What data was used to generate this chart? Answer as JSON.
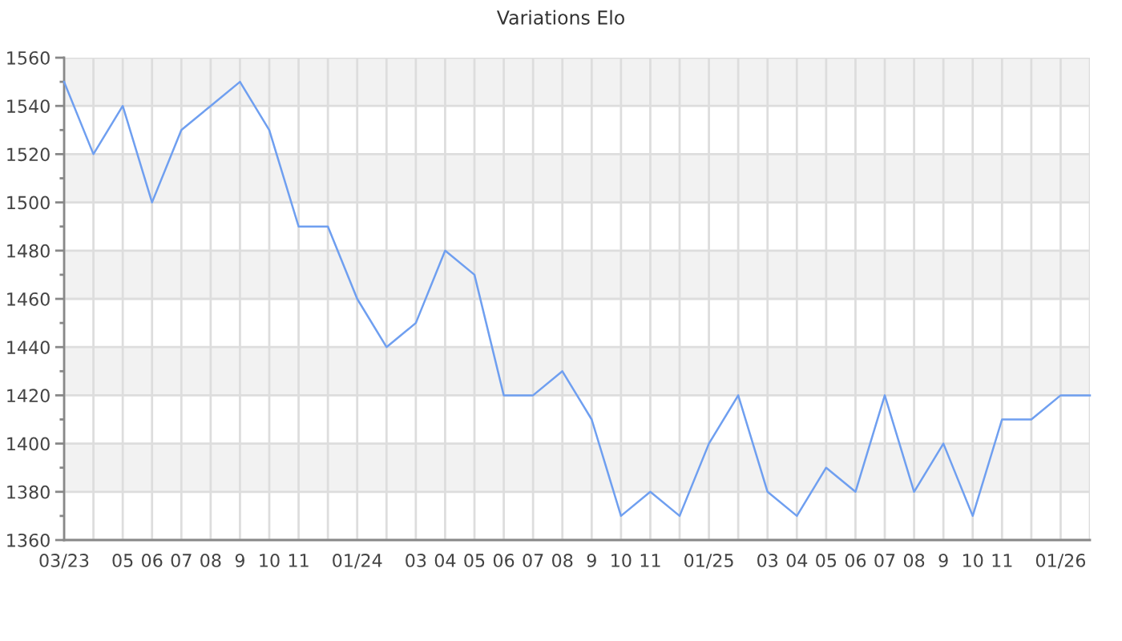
{
  "chart_data": {
    "type": "line",
    "title": "Variations Elo",
    "categories": [
      "03/23",
      null,
      "05",
      "06",
      "07",
      "08",
      "9",
      "10",
      "11",
      null,
      "01/24",
      null,
      "03",
      "04",
      "05",
      "06",
      "07",
      "08",
      "9",
      "10",
      "11",
      null,
      "01/25",
      null,
      "03",
      "04",
      "05",
      "06",
      "07",
      "08",
      "9",
      "10",
      "11",
      null,
      "01/26",
      null
    ],
    "series": [
      {
        "color": "#6f9ff0",
        "values": [
          1550,
          1520,
          1540,
          1500,
          1530,
          1540,
          1550,
          1530,
          1490,
          1490,
          1460,
          1440,
          1450,
          1480,
          1470,
          1420,
          1420,
          1430,
          1410,
          1370,
          1380,
          1370,
          1400,
          1420,
          1380,
          1370,
          1390,
          1380,
          1420,
          1380,
          1400,
          1370,
          1410,
          1410,
          1420,
          1420
        ]
      }
    ],
    "ylim": [
      1360,
      1560
    ],
    "yticks": [
      1360,
      {
        "value": 1370,
        "label": null
      },
      1380,
      {
        "value": 1390,
        "label": null
      },
      1400,
      {
        "value": 1410,
        "label": null
      },
      1420,
      {
        "value": 1430,
        "label": null
      },
      1440,
      {
        "value": 1450,
        "label": null
      },
      1460,
      {
        "value": 1470,
        "label": null
      },
      1480,
      {
        "value": 1490,
        "label": null
      },
      1500,
      {
        "value": 1510,
        "label": null
      },
      1520,
      {
        "value": 1530,
        "label": null
      },
      1540,
      {
        "value": 1550,
        "label": null
      },
      1560
    ],
    "grid": true,
    "bands": [
      {
        "axis": "y",
        "from": 1380,
        "to": 1400,
        "color": "#f2f2f2"
      },
      {
        "axis": "y",
        "from": 1420,
        "to": 1440,
        "color": "#f2f2f2"
      },
      {
        "axis": "y",
        "from": 1460,
        "to": 1480,
        "color": "#f2f2f2"
      },
      {
        "axis": "y",
        "from": 1500,
        "to": 1520,
        "color": "#f2f2f2"
      },
      {
        "axis": "y",
        "from": 1540,
        "to": 1560,
        "color": "#f2f2f2"
      }
    ]
  }
}
